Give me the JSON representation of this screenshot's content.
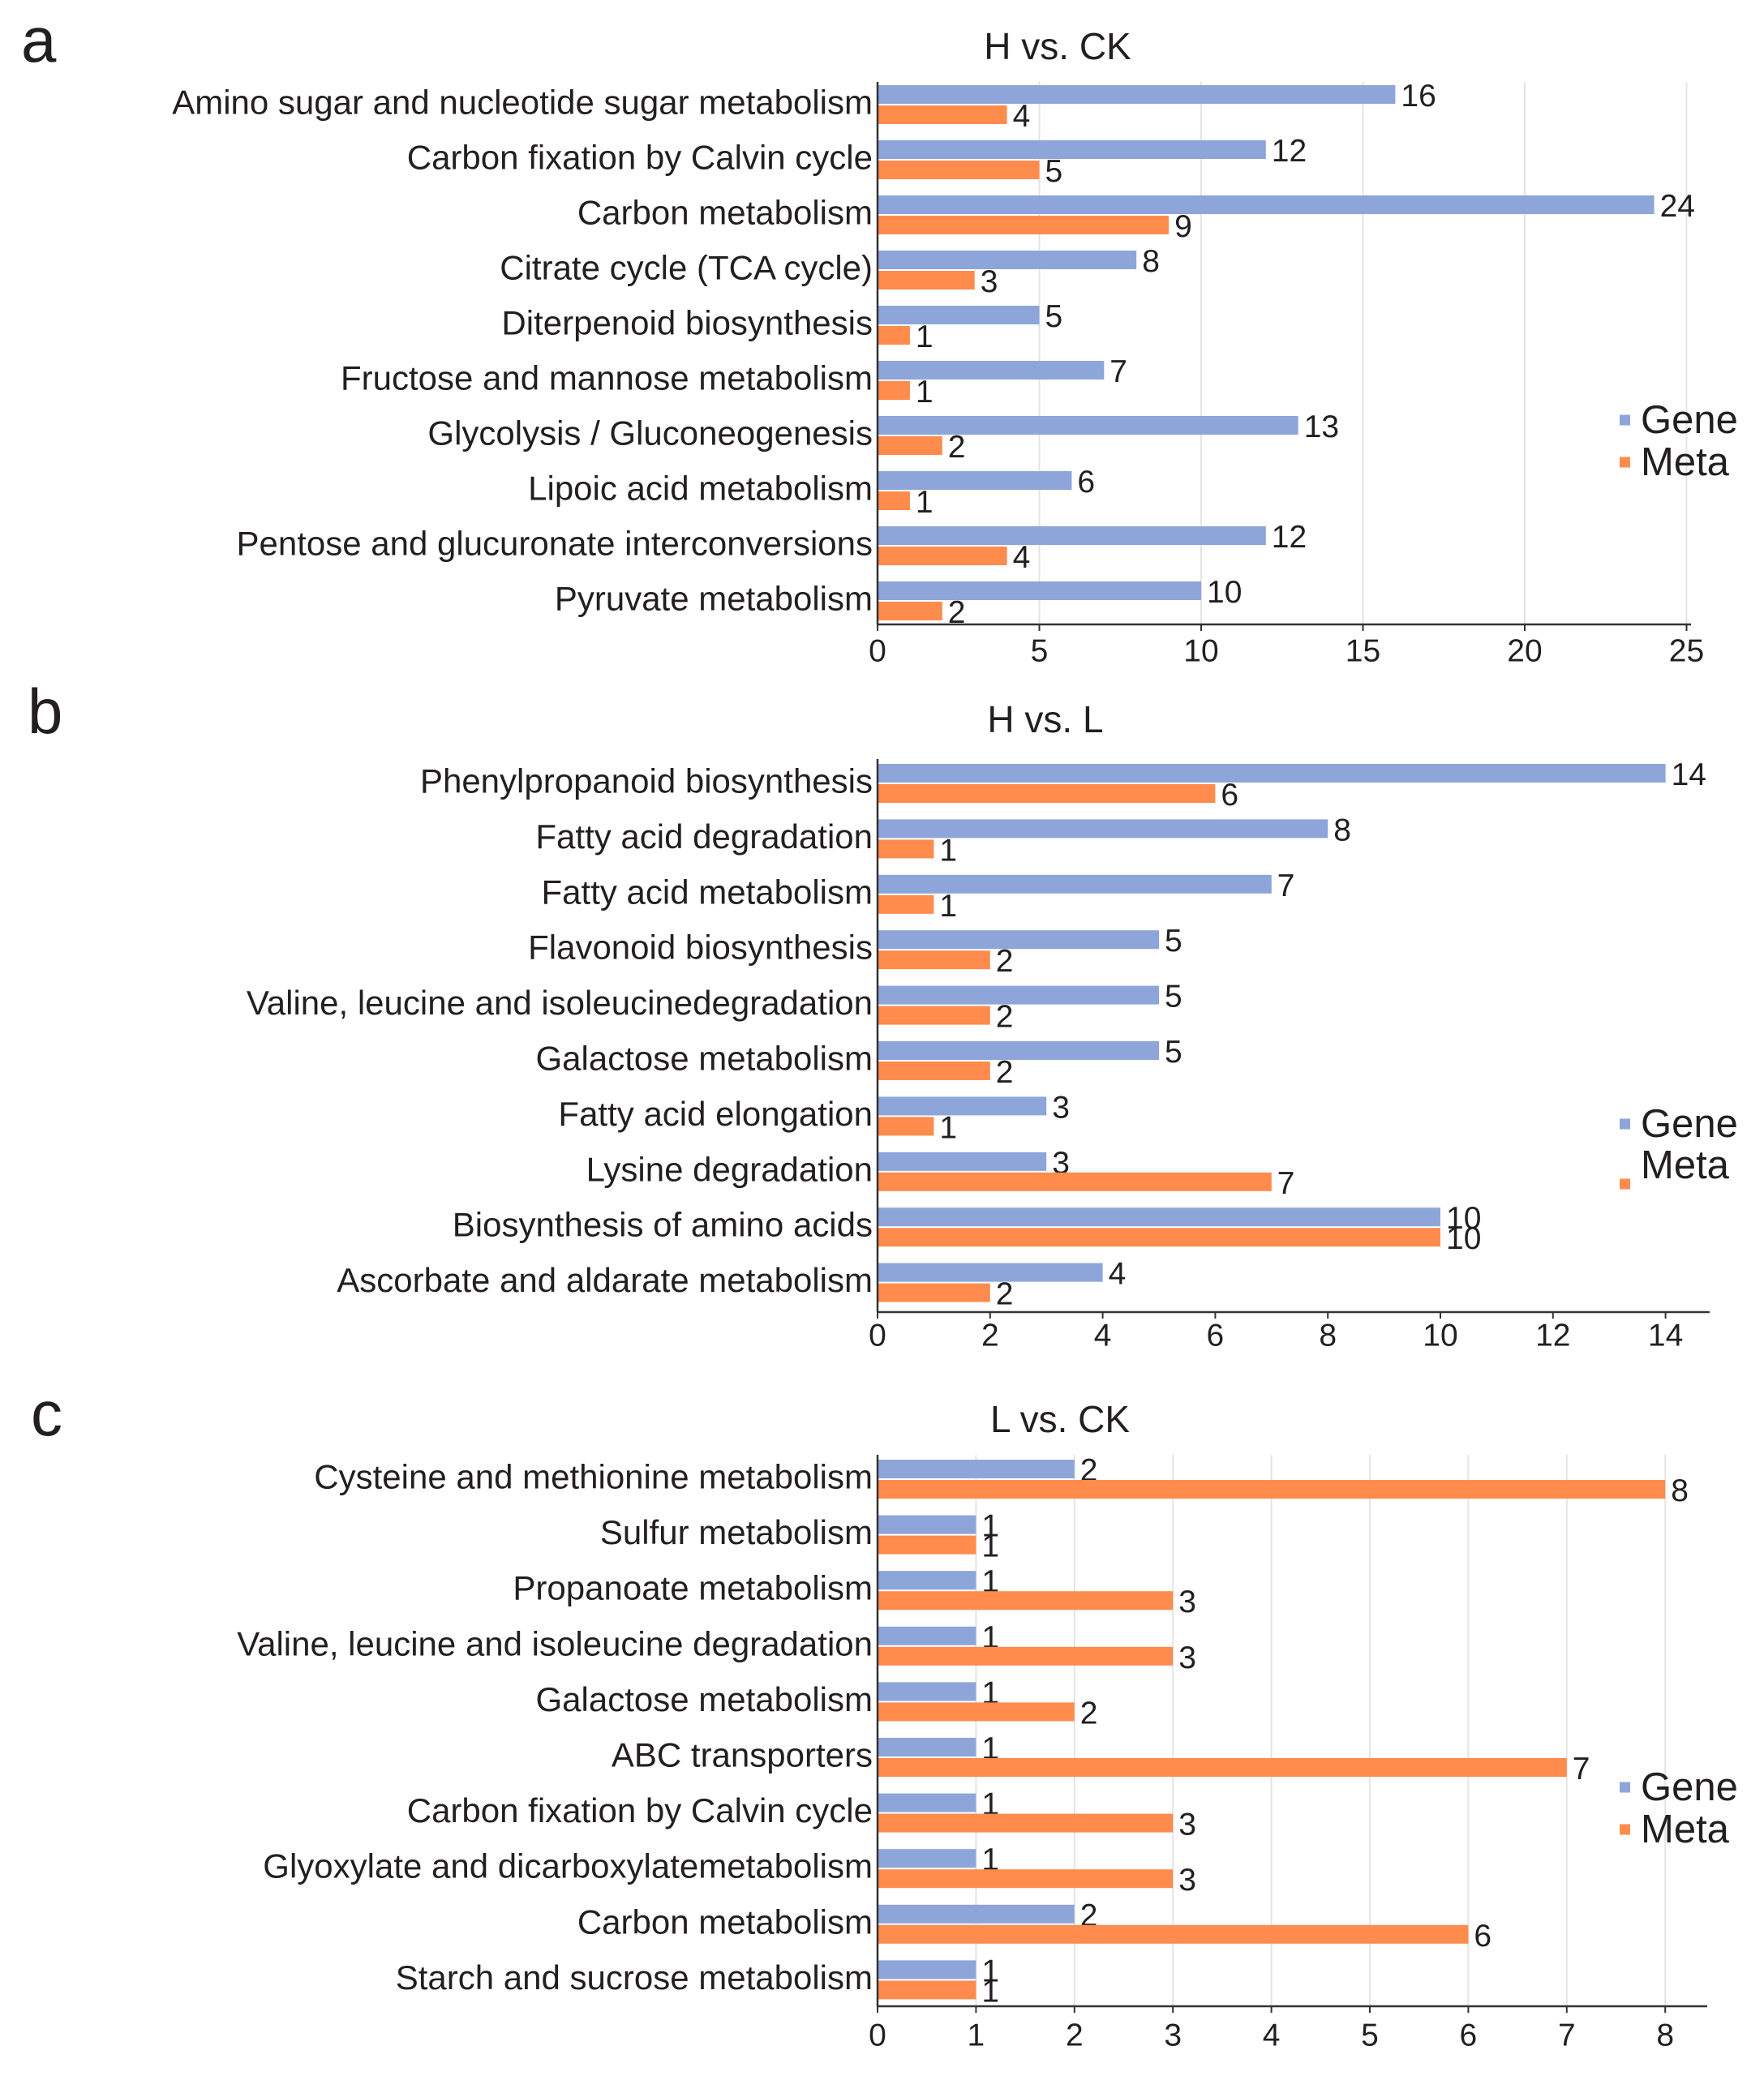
{
  "colors": {
    "gene": "#8da5d9",
    "meta": "#ff8b4d",
    "grid": "#e4e4e4",
    "axis": "#333333",
    "text": "#231f20",
    "background": "#ffffff"
  },
  "chart_data": [
    {
      "panel_label": "a",
      "type": "bar",
      "orientation": "horizontal",
      "title": "H vs. CK",
      "categories": [
        "Amino sugar and nucleotide sugar metabolism",
        "Carbon fixation by Calvin cycle",
        "Carbon metabolism",
        "Citrate cycle (TCA cycle)",
        "Diterpenoid biosynthesis",
        "Fructose and mannose metabolism",
        "Glycolysis / Gluconeogenesis",
        "Lipoic acid metabolism",
        "Pentose and glucuronate interconversions",
        "Pyruvate metabolism"
      ],
      "series": [
        {
          "name": "Gene",
          "values": [
            16,
            12,
            24,
            8,
            5,
            7,
            13,
            6,
            12,
            10
          ]
        },
        {
          "name": "Meta",
          "values": [
            4,
            5,
            9,
            3,
            1,
            1,
            2,
            1,
            4,
            2
          ]
        }
      ],
      "xlim": [
        0,
        25
      ],
      "xticks": [
        0,
        5,
        10,
        15,
        20,
        25
      ],
      "grid": true,
      "legend_position": "right"
    },
    {
      "panel_label": "b",
      "type": "bar",
      "orientation": "horizontal",
      "title": "H vs. L",
      "categories": [
        "Phenylpropanoid biosynthesis",
        "Fatty acid degradation",
        "Fatty acid metabolism",
        "Flavonoid biosynthesis",
        "Valine, leucine and isoleucinedegradation",
        "Galactose metabolism",
        "Fatty acid elongation",
        "Lysine degradation",
        "Biosynthesis of amino acids",
        "Ascorbate and aldarate metabolism"
      ],
      "series": [
        {
          "name": "Gene",
          "values": [
            14,
            8,
            7,
            5,
            5,
            5,
            3,
            3,
            10,
            4
          ]
        },
        {
          "name": "Meta",
          "values": [
            6,
            1,
            1,
            2,
            2,
            2,
            1,
            7,
            10,
            2
          ]
        }
      ],
      "xlim": [
        0,
        14
      ],
      "xticks": [
        0,
        2,
        4,
        6,
        8,
        10,
        12,
        14
      ],
      "grid": false,
      "legend_position": "right"
    },
    {
      "panel_label": "c",
      "type": "bar",
      "orientation": "horizontal",
      "title": "L vs. CK",
      "categories": [
        "Cysteine and methionine metabolism",
        "Sulfur metabolism",
        "Propanoate metabolism",
        "Valine, leucine and isoleucine degradation",
        "Galactose metabolism",
        "ABC transporters",
        "Carbon fixation by Calvin cycle",
        "Glyoxylate and dicarboxylatemetabolism",
        "Carbon metabolism",
        "Starch and sucrose metabolism"
      ],
      "series": [
        {
          "name": "Gene",
          "values": [
            2,
            1,
            1,
            1,
            1,
            1,
            1,
            1,
            2,
            1
          ]
        },
        {
          "name": "Meta",
          "values": [
            8,
            1,
            3,
            3,
            2,
            7,
            3,
            3,
            6,
            1
          ]
        }
      ],
      "xlim": [
        0,
        8
      ],
      "xticks": [
        0,
        1,
        2,
        3,
        4,
        5,
        6,
        7,
        8
      ],
      "grid": true,
      "legend_position": "right"
    }
  ]
}
